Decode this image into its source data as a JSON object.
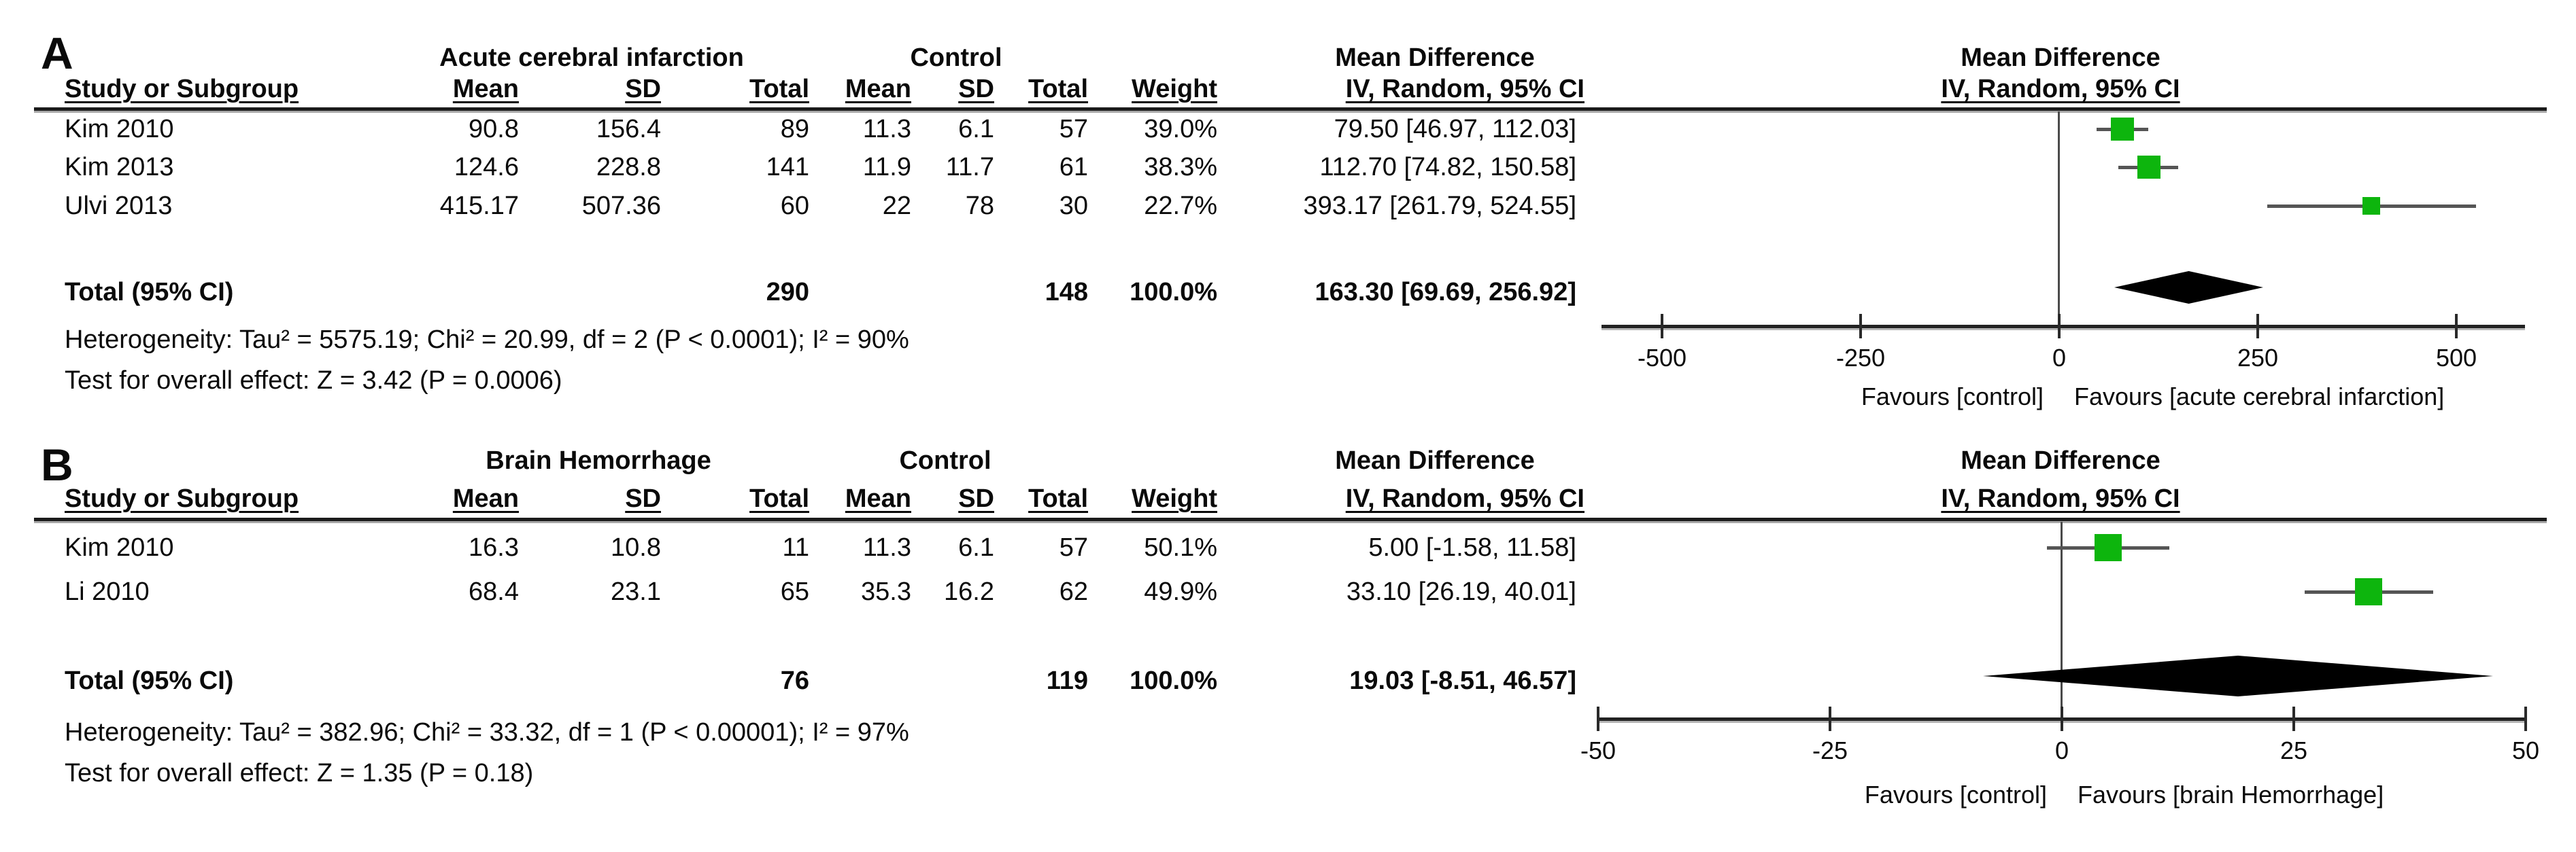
{
  "figure_title": "Forest plot of mean difference, IV random effects, 95% CI",
  "marker_color": "#0db50d",
  "diamond_color": "#000000",
  "chart_data": [
    {
      "type": "scatter",
      "subtype": "forest_plot",
      "panel_label": "A",
      "group1_header": "Acute cerebral infarction",
      "group2_header": "Control",
      "effect_header": "Mean Difference",
      "method_header": "IV, Random, 95% CI",
      "plot_effect_header": "Mean Difference",
      "plot_method_header": "IV, Random, 95% CI",
      "col_headers": {
        "study": "Study or Subgroup",
        "mean1": "Mean",
        "sd1": "SD",
        "total1": "Total",
        "mean2": "Mean",
        "sd2": "SD",
        "total2": "Total",
        "weight": "Weight"
      },
      "studies": [
        {
          "name": "Kim 2010",
          "mean": "90.8",
          "sd": "156.4",
          "total": "89",
          "c_mean": "11.3",
          "c_sd": "6.1",
          "c_total": "57",
          "weight": "39.0%",
          "ci_text": "79.50 [46.97, 112.03]",
          "est": 79.5,
          "lo": 46.97,
          "hi": 112.03
        },
        {
          "name": "Kim 2013",
          "mean": "124.6",
          "sd": "228.8",
          "total": "141",
          "c_mean": "11.9",
          "c_sd": "11.7",
          "c_total": "61",
          "weight": "38.3%",
          "ci_text": "112.70 [74.82, 150.58]",
          "est": 112.7,
          "lo": 74.82,
          "hi": 150.58
        },
        {
          "name": "Ulvi 2013",
          "mean": "415.17",
          "sd": "507.36",
          "total": "60",
          "c_mean": "22",
          "c_sd": "78",
          "c_total": "30",
          "weight": "22.7%",
          "ci_text": "393.17 [261.79, 524.55]",
          "est": 393.17,
          "lo": 261.79,
          "hi": 524.55
        }
      ],
      "total": {
        "label": "Total (95% CI)",
        "total1": "290",
        "total2": "148",
        "weight": "100.0%",
        "ci_text": "163.30 [69.69, 256.92]",
        "est": 163.3,
        "lo": 69.69,
        "hi": 256.92
      },
      "heterogeneity": "Heterogeneity: Tau² = 5575.19; Chi² = 20.99, df = 2 (P < 0.0001); I² = 90%",
      "overall_effect": "Test for overall effect: Z = 3.42 (P = 0.0006)",
      "axis_ticks": [
        "-500",
        "-250",
        "0",
        "250",
        "500"
      ],
      "axis_range": [
        -500,
        500
      ],
      "favours_left": "Favours [control]",
      "favours_right": "Favours [acute cerebral infarction]"
    },
    {
      "type": "scatter",
      "subtype": "forest_plot",
      "panel_label": "B",
      "group1_header": "Brain Hemorrhage",
      "group2_header": "Control",
      "effect_header": "Mean Difference",
      "method_header": "IV, Random, 95% CI",
      "plot_effect_header": "Mean Difference",
      "plot_method_header": "IV, Random, 95% CI",
      "col_headers": {
        "study": "Study or Subgroup",
        "mean1": "Mean",
        "sd1": "SD",
        "total1": "Total",
        "mean2": "Mean",
        "sd2": "SD",
        "total2": "Total",
        "weight": "Weight"
      },
      "studies": [
        {
          "name": "Kim 2010",
          "mean": "16.3",
          "sd": "10.8",
          "total": "11",
          "c_mean": "11.3",
          "c_sd": "6.1",
          "c_total": "57",
          "weight": "50.1%",
          "ci_text": "5.00 [-1.58, 11.58]",
          "est": 5.0,
          "lo": -1.58,
          "hi": 11.58
        },
        {
          "name": "Li 2010",
          "mean": "68.4",
          "sd": "23.1",
          "total": "65",
          "c_mean": "35.3",
          "c_sd": "16.2",
          "c_total": "62",
          "weight": "49.9%",
          "ci_text": "33.10 [26.19, 40.01]",
          "est": 33.1,
          "lo": 26.19,
          "hi": 40.01
        }
      ],
      "total": {
        "label": "Total (95% CI)",
        "total1": "76",
        "total2": "119",
        "weight": "100.0%",
        "ci_text": "19.03 [-8.51, 46.57]",
        "est": 19.03,
        "lo": -8.51,
        "hi": 46.57
      },
      "heterogeneity": "Heterogeneity: Tau² = 382.96; Chi² = 33.32, df = 1 (P < 0.00001); I² = 97%",
      "overall_effect": "Test for overall effect: Z = 1.35 (P = 0.18)",
      "axis_ticks": [
        "-50",
        "-25",
        "0",
        "25",
        "50"
      ],
      "axis_range": [
        -50,
        50
      ],
      "favours_left": "Favours [control]",
      "favours_right": "Favours [brain Hemorrhage]"
    }
  ]
}
